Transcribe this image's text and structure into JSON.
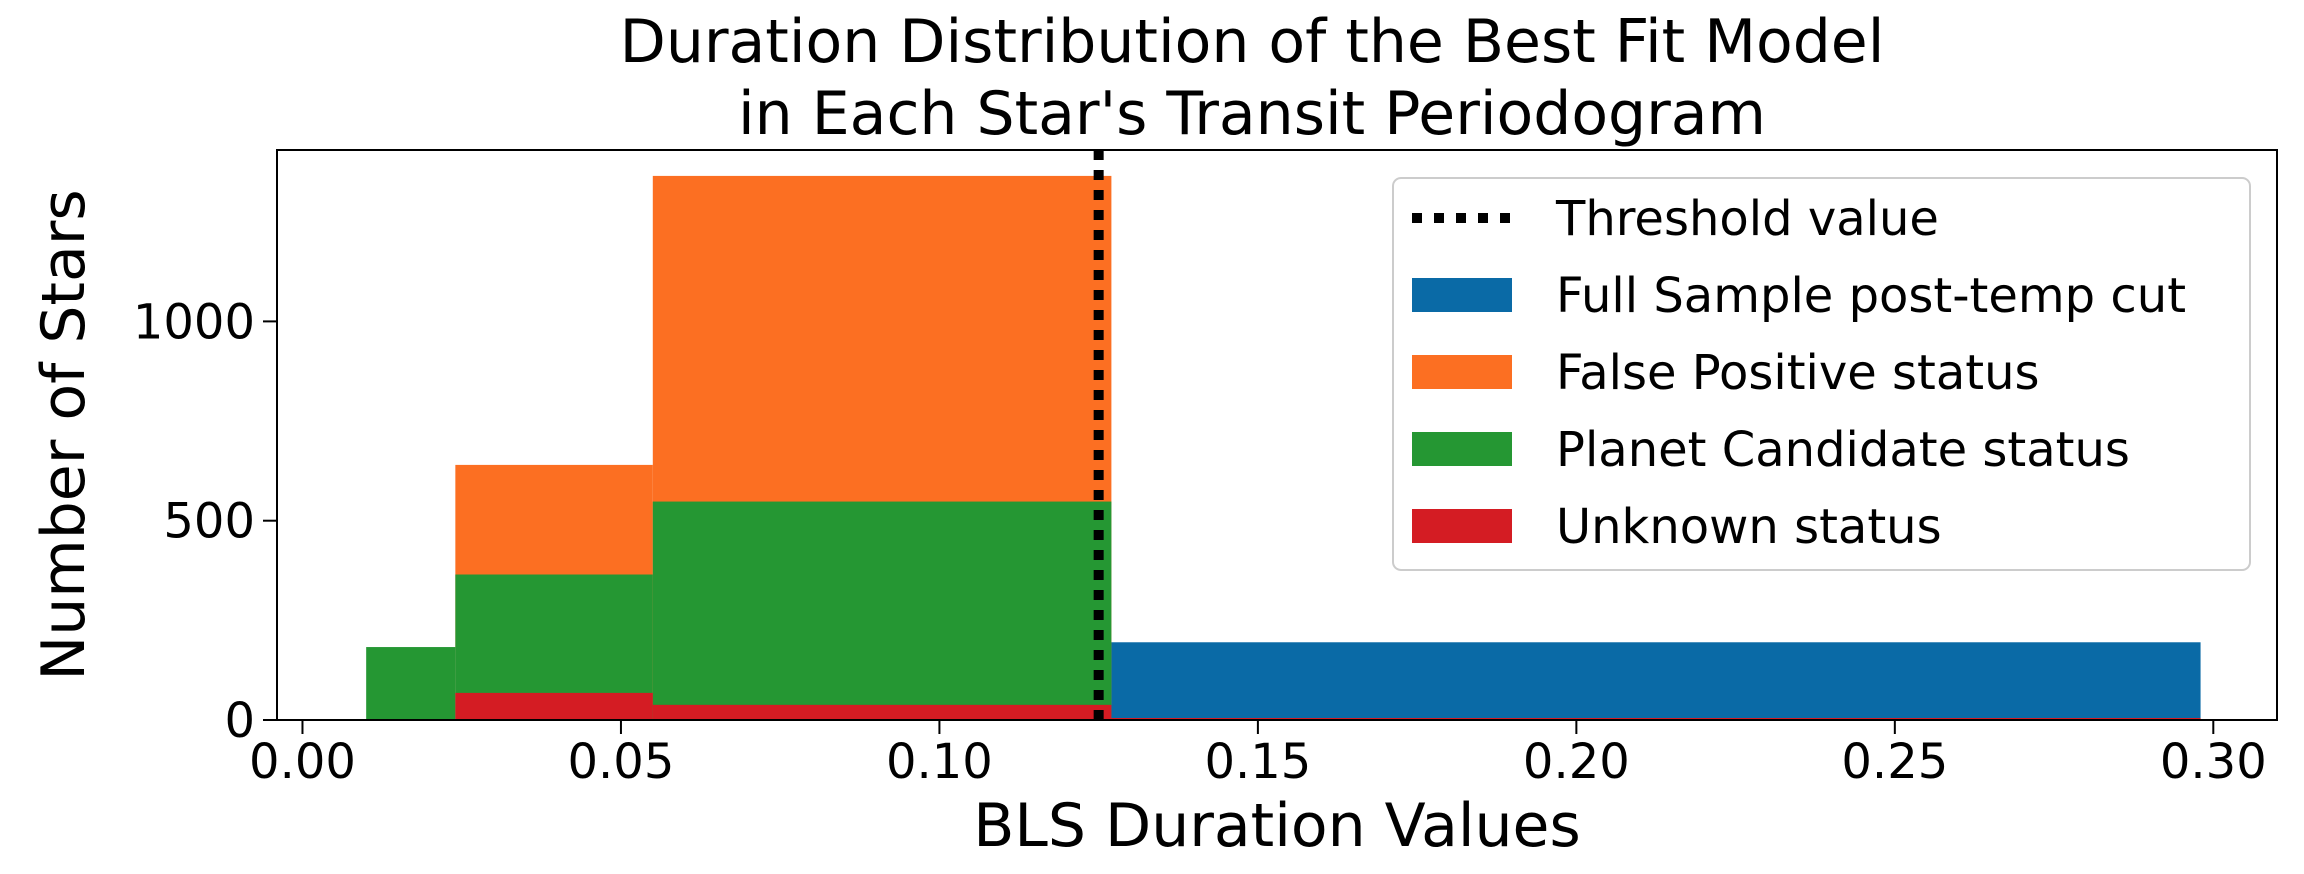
{
  "chart_data": {
    "type": "histogram",
    "title": [
      "Duration Distribution of the Best Fit Model",
      "in Each Star's Transit Periodogram"
    ],
    "xlabel": "BLS Duration Values",
    "ylabel": "Number of Stars",
    "xlim": [
      -0.004,
      0.31
    ],
    "ylim": [
      0,
      1430
    ],
    "x_ticks": [
      0.0,
      0.05,
      0.1,
      0.15,
      0.2,
      0.25,
      0.3
    ],
    "x_tick_labels": [
      "0.00",
      "0.05",
      "0.10",
      "0.15",
      "0.20",
      "0.25",
      "0.30"
    ],
    "y_ticks": [
      0,
      500,
      1000
    ],
    "y_tick_labels": [
      "0",
      "500",
      "1000"
    ],
    "threshold": {
      "name": "Threshold value",
      "x": 0.125,
      "style": "dotted",
      "color": "#000000"
    },
    "legend_position": "upper-right",
    "series": [
      {
        "name": "Full Sample post-temp cut",
        "color": "#0a6aa6",
        "bins": [
          {
            "x0": 0.127,
            "x1": 0.298,
            "count": 195
          }
        ]
      },
      {
        "name": "False Positive status",
        "color": "#fc6f22",
        "bins": [
          {
            "x0": 0.024,
            "x1": 0.055,
            "count": 640
          },
          {
            "x0": 0.055,
            "x1": 0.127,
            "count": 1365
          }
        ]
      },
      {
        "name": "Planet Candidate status",
        "color": "#259733",
        "bins": [
          {
            "x0": 0.01,
            "x1": 0.024,
            "count": 183
          },
          {
            "x0": 0.024,
            "x1": 0.055,
            "count": 365
          },
          {
            "x0": 0.055,
            "x1": 0.127,
            "count": 548
          }
        ]
      },
      {
        "name": "Unknown status",
        "color": "#d41c23",
        "bins": [
          {
            "x0": 0.024,
            "x1": 0.055,
            "count": 68
          },
          {
            "x0": 0.055,
            "x1": 0.127,
            "count": 38
          },
          {
            "x0": 0.127,
            "x1": 0.298,
            "count": 5
          }
        ]
      }
    ]
  }
}
